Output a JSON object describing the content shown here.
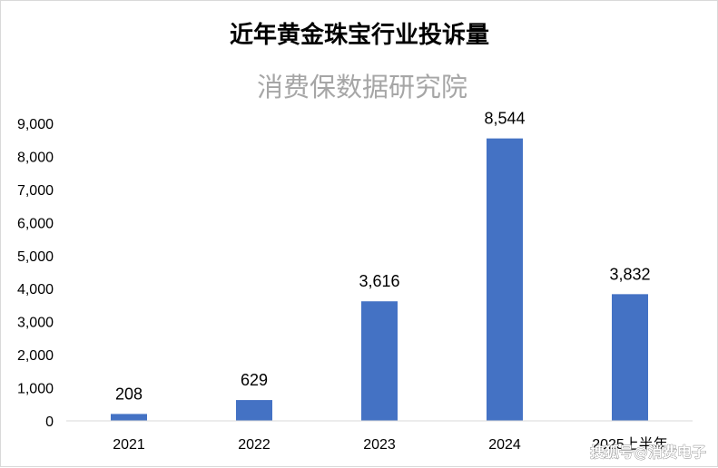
{
  "chart_data": {
    "type": "bar",
    "title": "近年黄金珠宝行业投诉量",
    "subtitle": "消费保数据研究院",
    "categories": [
      "2021",
      "2022",
      "2023",
      "2024",
      "2025上半年"
    ],
    "values": [
      208,
      629,
      3616,
      8544,
      3832
    ],
    "value_labels": [
      "208",
      "629",
      "3,616",
      "8,544",
      "3,832"
    ],
    "ylim": [
      0,
      9000
    ],
    "yticks": [
      0,
      1000,
      2000,
      3000,
      4000,
      5000,
      6000,
      7000,
      8000,
      9000
    ],
    "ytick_labels": [
      "0",
      "1,000",
      "2,000",
      "3,000",
      "4,000",
      "5,000",
      "6,000",
      "7,000",
      "8,000",
      "9,000"
    ],
    "grid": false,
    "legend": "none",
    "bar_color": "#4472C4",
    "xlabel": "",
    "ylabel": ""
  },
  "watermark": "搜狐号@消费电子"
}
